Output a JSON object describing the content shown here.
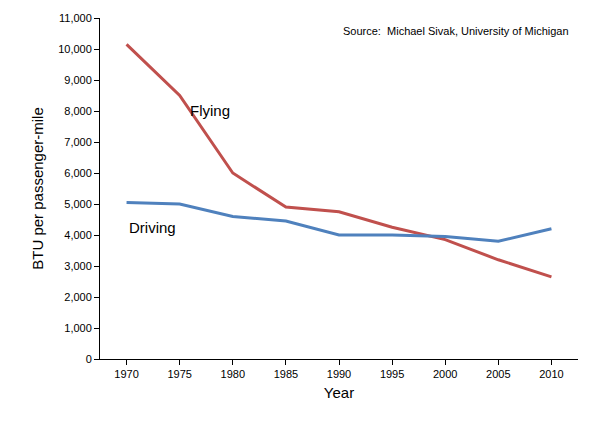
{
  "chart_data": {
    "type": "line",
    "x_label": "Year",
    "y_label": "BTU per passenger-mile",
    "annotations": [
      "Source:  Michael Sivak, University of Michigan"
    ],
    "categories": [
      "1970",
      "1975",
      "1980",
      "1985",
      "1990",
      "1995",
      "2000",
      "2005",
      "2010"
    ],
    "series": [
      {
        "name": "Flying",
        "color": "#c0504d",
        "values": [
          10150,
          8500,
          6000,
          4900,
          4750,
          4250,
          3850,
          3200,
          2650
        ]
      },
      {
        "name": "Driving",
        "color": "#4f81bd",
        "values": [
          5050,
          5000,
          4600,
          4450,
          4000,
          4000,
          3950,
          3800,
          4200
        ]
      }
    ],
    "ylim": [
      0,
      11000
    ],
    "yticks": [
      0,
      {
        "value": 1000,
        "label": "1,000"
      },
      {
        "value": 2000,
        "label": "2,000"
      },
      {
        "value": 3000,
        "label": "3,000"
      },
      {
        "value": 4000,
        "label": "4,000"
      },
      {
        "value": 5000,
        "label": "5,000"
      },
      {
        "value": 6000,
        "label": "6,000"
      },
      {
        "value": 7000,
        "label": "7,000"
      },
      {
        "value": 8000,
        "label": "8,000"
      },
      {
        "value": 9000,
        "label": "9,000"
      },
      {
        "value": 10000,
        "label": "10,000"
      },
      {
        "value": 11000,
        "label": "11,000"
      }
    ],
    "grid": false,
    "legend": "none"
  }
}
